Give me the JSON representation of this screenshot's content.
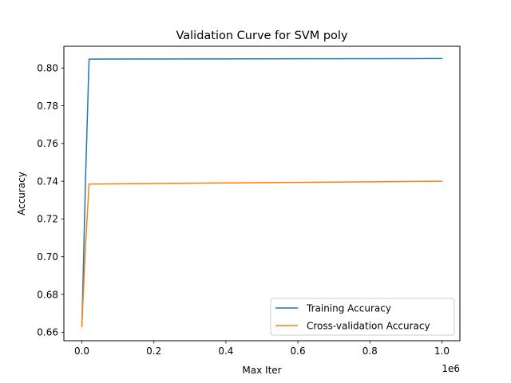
{
  "chart_data": {
    "type": "line",
    "title": "Validation Curve for SVM poly",
    "xlabel": "Max Iter",
    "ylabel": "Accuracy",
    "x_offset_label": "1e6",
    "xlim": [
      -50000,
      1050000
    ],
    "ylim": [
      0.6555,
      0.8115
    ],
    "x_ticks": [
      0,
      200000,
      400000,
      600000,
      800000,
      1000000
    ],
    "x_tick_labels": [
      "0.0",
      "0.2",
      "0.4",
      "0.6",
      "0.8",
      "1.0"
    ],
    "y_ticks": [
      0.66,
      0.68,
      0.7,
      0.72,
      0.74,
      0.76,
      0.78,
      0.8
    ],
    "y_tick_labels": [
      "0.66",
      "0.68",
      "0.70",
      "0.72",
      "0.74",
      "0.76",
      "0.78",
      "0.80"
    ],
    "grid": false,
    "legend_position": "lower-right",
    "series": [
      {
        "name": "Training Accuracy",
        "color": "#1f77b4",
        "x": [
          0,
          1000,
          10000,
          20000,
          1000000
        ],
        "y": [
          0.664,
          0.67,
          0.74,
          0.8047,
          0.805
        ]
      },
      {
        "name": "Cross-validation Accuracy",
        "color": "#ff7f0e",
        "x": [
          0,
          1000,
          10000,
          20000,
          1000000
        ],
        "y": [
          0.663,
          0.668,
          0.705,
          0.7385,
          0.74
        ]
      }
    ]
  }
}
